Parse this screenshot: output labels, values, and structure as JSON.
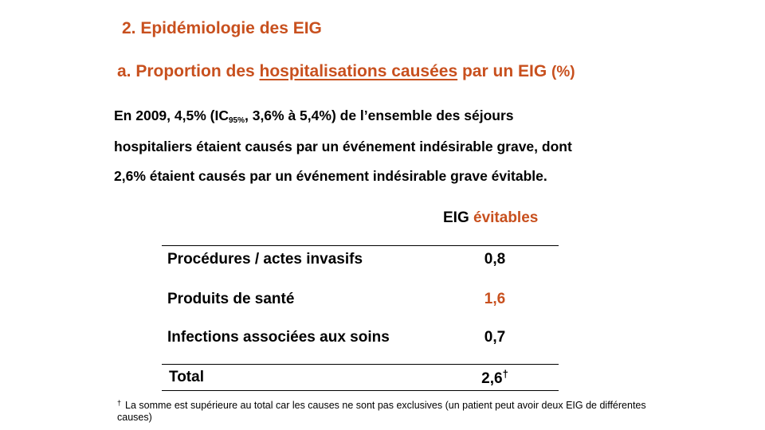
{
  "section_title": "2. Epidémiologie des EIG",
  "subtitle": {
    "prefix": "a. Proportion des ",
    "underlined": "hospitalisations causées",
    "middle": " par un EIG ",
    "paren": "(%)"
  },
  "paragraph": {
    "line1_a": "En 2009, 4,5% (IC",
    "line1_sub": "95%",
    "line1_b": ", 3,6% à 5,4%) de l’ensemble des séjours",
    "line2": "hospitaliers étaient causés par un événement indésirable grave, dont",
    "line3": "2,6% étaient causés par un événement indésirable grave évitable."
  },
  "table": {
    "col_header_black": "EIG ",
    "col_header_orange": "évitables",
    "rows": [
      {
        "label": "Procédures / actes invasifs",
        "value": "0,8"
      },
      {
        "label": "Produits de santé",
        "value": "1,6"
      },
      {
        "label": "Infections associées aux soins",
        "value": "0,7"
      }
    ],
    "total": {
      "label": "Total",
      "value": "2,6",
      "mark": "†"
    }
  },
  "footnote": {
    "mark": "†",
    "text": "La somme est supérieure au total car les causes ne sont pas exclusives (un patient peut avoir deux EIG de différentes causes)"
  },
  "colors": {
    "accent": "#c8501e",
    "text": "#000000"
  }
}
